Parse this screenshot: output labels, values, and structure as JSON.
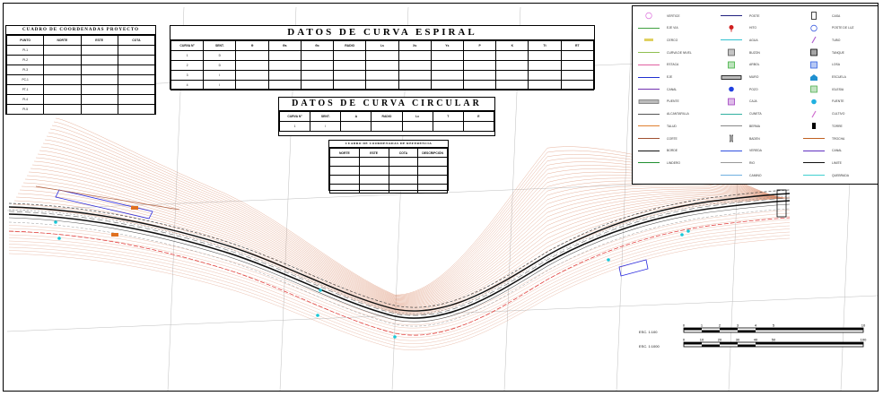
{
  "colors": {
    "contour": "#d98a6a",
    "road_black": "#111111",
    "edge_red": "#e03030",
    "axis_blue": "#2a2adf",
    "water_cyan": "#18c8d8",
    "grid": "#bdbdbd"
  },
  "coord_table": {
    "title": "CUADRO DE COORDENADAS PROYECTO",
    "headers": [
      "PUNTO",
      "NORTE",
      "ESTE",
      "COTA"
    ],
    "rows": [
      [
        "PI-1",
        "",
        "",
        ""
      ],
      [
        "PI-2",
        "",
        "",
        ""
      ],
      [
        "PI-3",
        "",
        "",
        ""
      ],
      [
        "PC-1",
        "",
        "",
        ""
      ],
      [
        "PT-1",
        "",
        "",
        ""
      ],
      [
        "PI-4",
        "",
        "",
        ""
      ],
      [
        "PI-5",
        "",
        "",
        ""
      ]
    ]
  },
  "spiral_table": {
    "title": "DATOS DE CURVA ESPIRAL",
    "headers": [
      "CURVA N°",
      "SENT.",
      "Θ",
      "Θs",
      "Θc",
      "RADIO",
      "Ls",
      "Xs",
      "Ys",
      "P",
      "K",
      "Tt",
      "RT"
    ],
    "rows": [
      [
        "1",
        "D",
        "",
        "",
        "",
        "",
        "",
        "",
        "",
        "",
        "",
        "",
        ""
      ],
      [
        "2",
        "D",
        "",
        "",
        "",
        "",
        "",
        "",
        "",
        "",
        "",
        "",
        ""
      ],
      [
        "3",
        "I",
        "",
        "",
        "",
        "",
        "",
        "",
        "",
        "",
        "",
        "",
        ""
      ],
      [
        "4",
        "I",
        "",
        "",
        "",
        "",
        "",
        "",
        "",
        "",
        "",
        "",
        ""
      ]
    ]
  },
  "circular_table": {
    "title": "DATOS DE CURVA CIRCULAR",
    "headers": [
      "CURVA N°",
      "SENT.",
      "Δ",
      "RADIO",
      "Lc",
      "T",
      "E"
    ],
    "rows": [
      [
        "1",
        "I",
        "",
        "",
        "",
        "",
        ""
      ]
    ]
  },
  "small_table": {
    "title": "CUADRO DE COORDENADAS DE REFERENCIA",
    "headers": [
      "NORTE",
      "ESTE",
      "COTA",
      "DESCRIPCIÓN"
    ],
    "rows": [
      [
        "",
        "",
        "",
        ""
      ],
      [
        "",
        "",
        "",
        ""
      ],
      [
        "",
        "",
        "",
        ""
      ],
      [
        "",
        "",
        "",
        ""
      ]
    ]
  },
  "legend": {
    "col1": [
      {
        "icon": "circle-pink-icon",
        "label": "VERTICE"
      },
      {
        "icon": "line-green-icon",
        "label": "EJE VIA"
      },
      {
        "icon": "rect-yellow-icon",
        "label": "CERCO"
      },
      {
        "icon": "line-lightgreen-icon",
        "label": "CURVA DE NIVEL"
      },
      {
        "icon": "line-pink-icon",
        "label": "ESTACA"
      },
      {
        "icon": "line-blue-icon",
        "label": "EJE"
      },
      {
        "icon": "line-purple-icon",
        "label": "CANAL"
      },
      {
        "icon": "bar-gray-icon",
        "label": "PUENTE"
      },
      {
        "icon": "line-darkgray-icon",
        "label": "ALCANTARILLA"
      },
      {
        "icon": "line-orange-icon",
        "label": "TALUD"
      },
      {
        "icon": "line-brown-icon",
        "label": "CORTE"
      },
      {
        "icon": "line-black-icon",
        "label": "BORDE"
      },
      {
        "icon": "line-green2-icon",
        "label": "LINDERO"
      }
    ],
    "col2": [
      {
        "icon": "line-navy-icon",
        "label": "POSTE"
      },
      {
        "icon": "pin-red-icon",
        "label": "HITO"
      },
      {
        "icon": "line-cyan-icon",
        "label": "AGUA"
      },
      {
        "icon": "box-x-icon",
        "label": "BUZON"
      },
      {
        "icon": "box-green-icon",
        "label": "ARBOL"
      },
      {
        "icon": "bar-black-icon",
        "label": "MURO"
      },
      {
        "icon": "dot-blue-icon",
        "label": "POZO"
      },
      {
        "icon": "box-purple-icon",
        "label": "CAJA"
      },
      {
        "icon": "line-teal-icon",
        "label": "CUNETA"
      },
      {
        "icon": "line-gray-icon",
        "label": "BERMA"
      },
      {
        "icon": "bracket-icon",
        "label": "BADEN"
      },
      {
        "icon": "line-blue2-icon",
        "label": "VEREDA"
      },
      {
        "icon": "line-gray2-icon",
        "label": "RIO"
      },
      {
        "icon": "line-lightblue-icon",
        "label": "CAMINO"
      }
    ],
    "col3": [
      {
        "icon": "tall-rect-icon",
        "label": "CASA"
      },
      {
        "icon": "circle-blue-icon",
        "label": "POSTE DE LUZ"
      },
      {
        "icon": "slash-icon",
        "label": "TUBO"
      },
      {
        "icon": "box-black-icon",
        "label": "TANQUE"
      },
      {
        "icon": "box-blue-icon",
        "label": "LOSA"
      },
      {
        "icon": "house-blue-icon",
        "label": "ESCUELA"
      },
      {
        "icon": "box-green2-icon",
        "label": "IGLESIA"
      },
      {
        "icon": "dot-cyan-icon",
        "label": "FUENTE"
      },
      {
        "icon": "feather-icon",
        "label": "CULTIVO"
      },
      {
        "icon": "dots-black-icon",
        "label": "TORRE"
      },
      {
        "icon": "line-brown2-icon",
        "label": "TROCHA"
      },
      {
        "icon": "line-purple2-icon",
        "label": "CANAL"
      },
      {
        "icon": "line-black2-icon",
        "label": "LIMITE"
      },
      {
        "icon": "line-cyan2-icon",
        "label": "QUEBRADA"
      }
    ]
  },
  "scales": [
    {
      "label": "ESC. 1:100",
      "ticks": [
        "0",
        "1",
        "2",
        "3",
        "4",
        "5",
        "10"
      ]
    },
    {
      "label": "ESC. 1:1000",
      "ticks": [
        "0",
        "10",
        "20",
        "30",
        "40",
        "50",
        "100"
      ]
    }
  ]
}
